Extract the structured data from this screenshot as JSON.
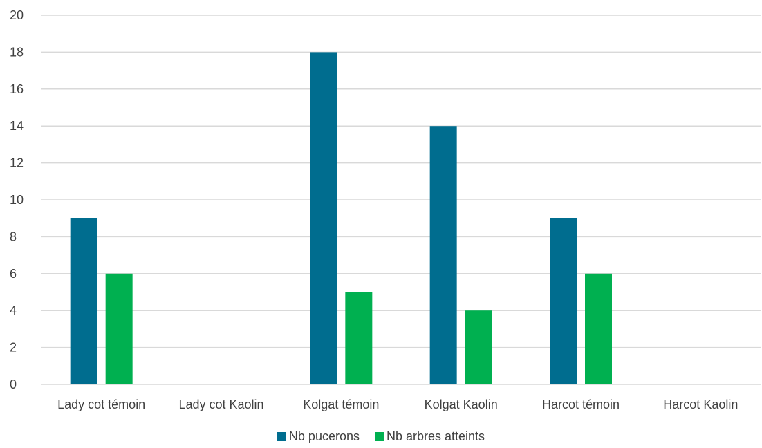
{
  "chart_data": {
    "type": "bar",
    "categories": [
      "Lady cot témoin",
      "Lady cot Kaolin",
      "Kolgat témoin",
      "Kolgat Kaolin",
      "Harcot témoin",
      "Harcot Kaolin"
    ],
    "series": [
      {
        "name": "Nb pucerons",
        "values": [
          9,
          0,
          18,
          14,
          9,
          0
        ],
        "color": "#006d8f"
      },
      {
        "name": "Nb arbres atteints",
        "values": [
          6,
          0,
          5,
          4,
          6,
          0
        ],
        "color": "#00b050"
      }
    ],
    "yticks": [
      "0",
      "2",
      "4",
      "6",
      "8",
      "10",
      "12",
      "14",
      "16",
      "18",
      "20"
    ],
    "ylim": [
      0,
      20
    ],
    "grid": true,
    "legend_position": "bottom"
  }
}
